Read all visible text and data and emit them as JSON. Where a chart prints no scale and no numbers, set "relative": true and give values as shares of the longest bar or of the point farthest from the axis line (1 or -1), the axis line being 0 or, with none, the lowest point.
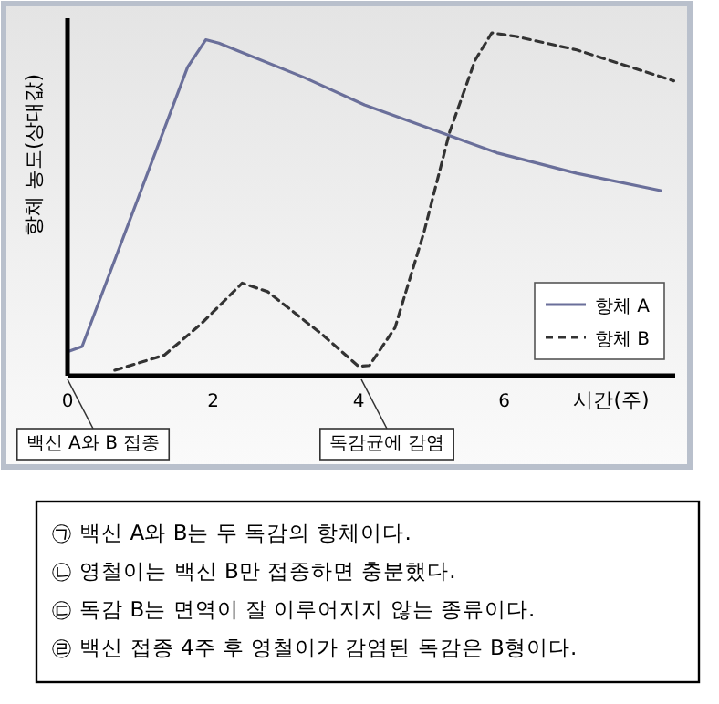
{
  "chart_data": {
    "type": "line",
    "relative": true,
    "ylabel": "항체 농도(상대값)",
    "xlabel": "시간(주)",
    "xlim": [
      0,
      8.35
    ],
    "xticks": [
      0,
      2,
      4,
      6
    ],
    "tick_labels": "x",
    "grid": false,
    "legend": "bottom right",
    "marker": "none",
    "series": [
      {
        "name": "항체 A",
        "color": "#6a6f9a",
        "line_style": "solid",
        "x": [
          0,
          0.2,
          1.65,
          1.9,
          2.08,
          3.25,
          4.08,
          5.25,
          5.9,
          7.0,
          8.15
        ],
        "values": [
          0.07,
          0.085,
          0.9,
          0.98,
          0.97,
          0.87,
          0.79,
          0.7,
          0.65,
          0.59,
          0.54
        ]
      },
      {
        "name": "항체 B",
        "color": "#333333",
        "line_style": "dashed",
        "x": [
          0.65,
          1.33,
          1.83,
          2.4,
          2.75,
          3.5,
          4.0,
          4.15,
          4.5,
          4.9,
          5.25,
          5.6,
          5.83,
          6.15,
          7.0,
          8.33
        ],
        "values": [
          0.016,
          0.06,
          0.15,
          0.27,
          0.245,
          0.12,
          0.027,
          0.03,
          0.14,
          0.42,
          0.71,
          0.92,
          1.0,
          0.99,
          0.95,
          0.86
        ]
      }
    ],
    "annotations": [
      "백신 A와 B 접종",
      "독감균에 감염",
      "㉠ 백신 A와 B는 두 독감의 항체이다.",
      "㉡ 영철이는 백신 B만 접종하면 충분했다.",
      "㉢ 독감 B는 면역이 잘 이루어지지 않는 종류이다.",
      "㉣ 백신 접종 4주 후 영철이가 감염된 독감은 B형이다."
    ]
  }
}
